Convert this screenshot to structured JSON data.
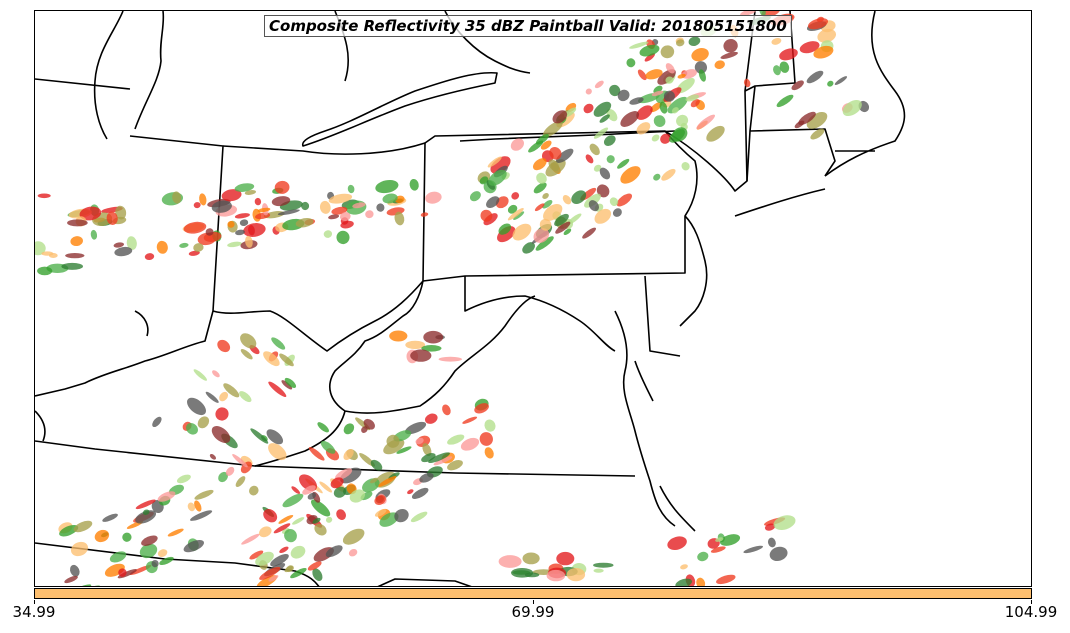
{
  "title": "Composite Reflectivity 35 dBZ Paintball Valid: 201805151800",
  "colorbar": {
    "color": "#fdbf6f",
    "ticks": [
      "34.99",
      "69.99",
      "104.99"
    ]
  },
  "member_colors": [
    "#33a02c",
    "#e31a1c",
    "#ff7f00",
    "#fb9a99",
    "#fdbf6f",
    "#b2df8a",
    "#555555",
    "#a6a04a",
    "#8c2d2d",
    "#4daf4a",
    "#2e7d32",
    "#f03b20"
  ]
}
